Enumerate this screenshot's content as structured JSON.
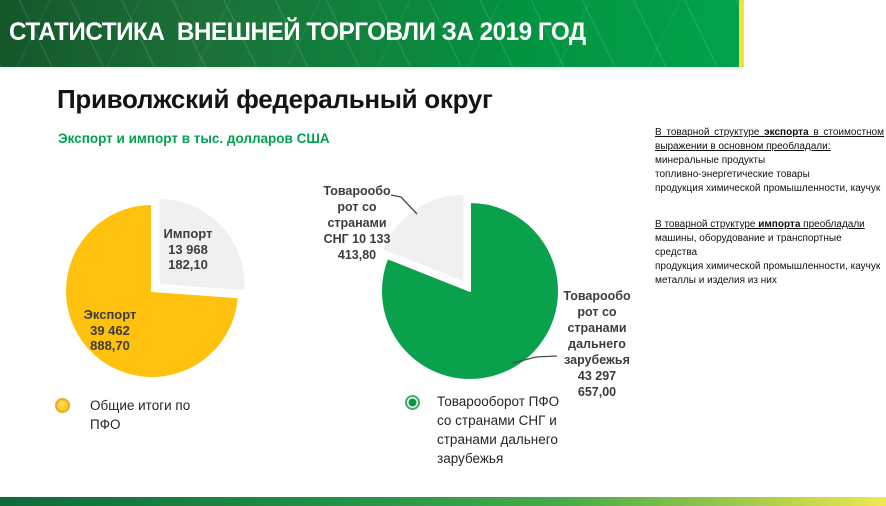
{
  "banner": {
    "title": "СТАТИСТИКА  ВНЕШНЕЙ ТОРГОВЛИ ЗА 2019 ГОД"
  },
  "page": {
    "title": "Приволжский федеральный округ",
    "subtitle": "Экспорт и импорт в тыс. долларов США"
  },
  "colors": {
    "accent_green": "#00A14E",
    "pie_yellow": "#FEC10D",
    "pie_green": "#0AA14D",
    "pie_gray": "#F0F0F0",
    "banner_dark_green": "#14572B",
    "banner_yellow_stripe": "#F0E13B"
  },
  "chart_data": [
    {
      "type": "pie",
      "unit": "тыс. долларов США",
      "slices": [
        {
          "label": "Импорт",
          "value": 13968182.1,
          "display": "Импорт\n13 968\n182,10",
          "color": "#F0F0F0",
          "exploded": true
        },
        {
          "label": "Экспорт",
          "value": 39462888.7,
          "display": "Экспорт\n39 462\n888,70",
          "color": "#FEC10D",
          "exploded": false
        }
      ],
      "legend_label": "Общие итоги по\nПФО",
      "legend_marker_color": "#FEC10D"
    },
    {
      "type": "pie",
      "unit": "тыс. долларов США",
      "slices": [
        {
          "label": "Товарооборот со странами дальнего зарубежья",
          "value": 43297657.0,
          "display": "Товарообо\nрот со\nстранами\nдальнего\nзарубежья\n43 297\n657,00",
          "color": "#0AA14D",
          "exploded": false
        },
        {
          "label": "Товарооборот со странами СНГ",
          "value": 10133413.8,
          "display": "Товарообо\nрот со\nстранами\nСНГ 10 133\n413,80",
          "color": "#F0F0F0",
          "exploded": true
        }
      ],
      "legend_label": "Товарооборот ПФО\nсо странами СНГ и\nстранами дальнего\nзарубежья",
      "legend_marker_color": "#0AA14D"
    }
  ],
  "right_panel": {
    "export_heading": {
      "pre": "В товарной структуре ",
      "bold": "экспорта",
      "post": " в стоимостном выражении в основном преобладали:"
    },
    "export_items": [
      "минеральные продукты",
      " топливно-энергетические товары",
      "продукция химической промышленности, каучук"
    ],
    "import_heading": {
      "pre": "В товарной структуре ",
      "bold": "импорта",
      "post": " преобладали"
    },
    "import_items": [
      "машины, оборудование и транспортные средства",
      "продукция химической промышленности, каучук",
      "металлы и изделия из них"
    ]
  }
}
